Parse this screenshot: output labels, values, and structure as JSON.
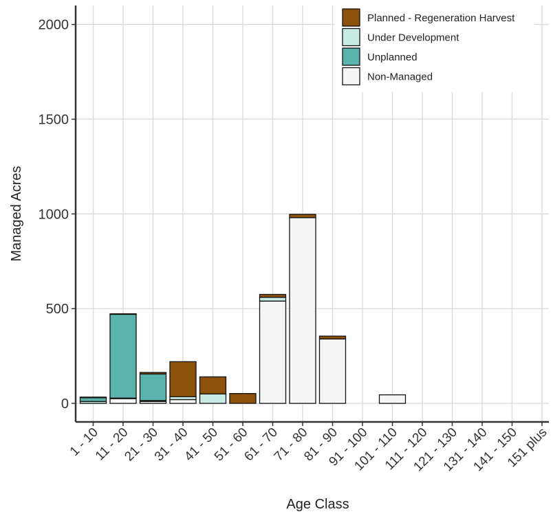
{
  "chart_data": {
    "type": "bar",
    "stacked": true,
    "xlabel": "Age Class",
    "ylabel": "Managed Acres",
    "ylim": [
      0,
      2050
    ],
    "yticks": [
      0,
      500,
      1000,
      1500,
      2000
    ],
    "grid": true,
    "legend_position": "top-right",
    "categories": [
      "1 - 10",
      "11 - 20",
      "21 - 30",
      "31 - 40",
      "41 - 50",
      "51 - 60",
      "61 - 70",
      "71 - 80",
      "81 - 90",
      "91 - 100",
      "101 - 110",
      "111 - 120",
      "121 - 130",
      "131 - 140",
      "141 - 150",
      "151 plus"
    ],
    "series": [
      {
        "name": "Non-Managed",
        "color": "#F5F5F5",
        "values": [
          0,
          25,
          10,
          20,
          0,
          0,
          540,
          980,
          340,
          0,
          45,
          0,
          0,
          0,
          0,
          0
        ]
      },
      {
        "name": "Under Development",
        "color": "#C7EAE4",
        "values": [
          10,
          3,
          5,
          15,
          50,
          0,
          20,
          0,
          0,
          0,
          0,
          0,
          0,
          0,
          0,
          0
        ]
      },
      {
        "name": "Unplanned",
        "color": "#5AB4AC",
        "values": [
          20,
          442,
          140,
          0,
          0,
          0,
          0,
          0,
          0,
          0,
          0,
          0,
          0,
          0,
          0,
          0
        ]
      },
      {
        "name": "Planned - Regeneration Harvest",
        "color": "#8C510A",
        "values": [
          3,
          3,
          8,
          185,
          90,
          52,
          15,
          18,
          15,
          0,
          0,
          0,
          0,
          0,
          0,
          0
        ]
      }
    ],
    "legend_order": [
      "Planned - Regeneration Harvest",
      "Under Development",
      "Unplanned",
      "Non-Managed"
    ]
  }
}
